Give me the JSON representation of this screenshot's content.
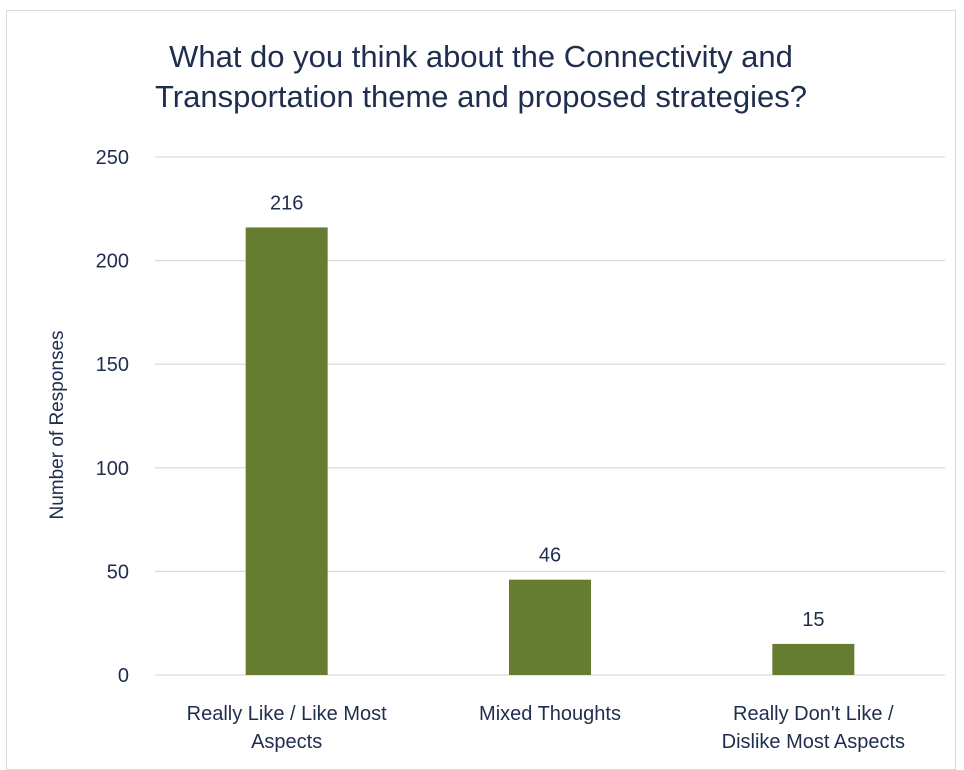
{
  "chart_data": {
    "type": "bar",
    "title_lines": [
      "What do you think about the Connectivity and",
      "Transportation theme and proposed strategies?"
    ],
    "ylabel": "Number of Responses",
    "xlabel": "",
    "categories": [
      [
        "Really Like / Like Most",
        "Aspects"
      ],
      [
        "Mixed Thoughts"
      ],
      [
        "Really Don't Like /",
        "Dislike Most Aspects"
      ]
    ],
    "values": [
      216,
      46,
      15
    ],
    "ylim": [
      0,
      250
    ],
    "yticks": [
      0,
      50,
      100,
      150,
      200,
      250
    ],
    "grid": true,
    "legend": "none",
    "bar_color": "#667c31",
    "grid_color": "#d9d9d9",
    "text_color": "#1f2d4e"
  }
}
